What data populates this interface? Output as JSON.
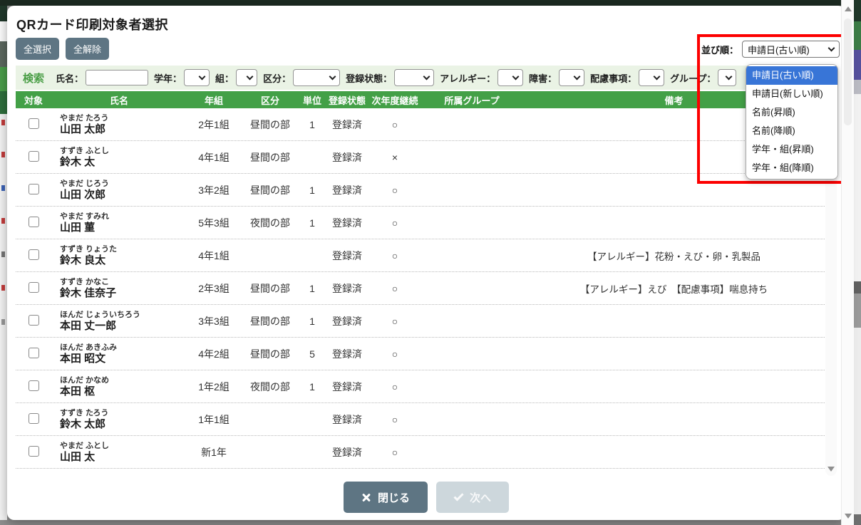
{
  "modal": {
    "title": "QRカード印刷対象者選択",
    "select_all_label": "全選択",
    "deselect_all_label": "全解除",
    "close_label": "閉じる",
    "next_label": "次へ"
  },
  "sort": {
    "label": "並び順：",
    "selected": "申請日(古い順)",
    "selected_index": 0,
    "options": [
      "申請日(古い順)",
      "申請日(新しい順)",
      "名前(昇順)",
      "名前(降順)",
      "学年・組(昇順)",
      "学年・組(降順)"
    ]
  },
  "search": {
    "title": "検索",
    "fields": [
      {
        "label": "氏名：",
        "type": "text",
        "value": "",
        "placeholder": ""
      },
      {
        "label": "学年：",
        "type": "select",
        "value": ""
      },
      {
        "label": "組：",
        "type": "select",
        "value": ""
      },
      {
        "label": "区分：",
        "type": "select",
        "value": ""
      },
      {
        "label": "登録状態：",
        "type": "select",
        "value": ""
      },
      {
        "label": "アレルギー：",
        "type": "select",
        "value": ""
      },
      {
        "label": "障害：",
        "type": "select",
        "value": ""
      },
      {
        "label": "配慮事項：",
        "type": "select",
        "value": ""
      },
      {
        "label": "グループ：",
        "type": "select",
        "value": ""
      }
    ]
  },
  "table": {
    "headers": [
      "対象",
      "氏名",
      "年組",
      "区分",
      "単位",
      "登録状態",
      "次年度継続",
      "所属グループ",
      "備考"
    ],
    "rows": [
      {
        "kana": "やまだ たろう",
        "name": "山田 太郎",
        "grade": "2年1組",
        "division": "昼間の部",
        "unit": "1",
        "status": "登録済",
        "next_year": "○",
        "group": "",
        "note": ""
      },
      {
        "kana": "すずき ふとし",
        "name": "鈴木 太",
        "grade": "4年1組",
        "division": "昼間の部",
        "unit": "",
        "status": "登録済",
        "next_year": "×",
        "group": "",
        "note": ""
      },
      {
        "kana": "やまだ じろう",
        "name": "山田 次郎",
        "grade": "3年2組",
        "division": "昼間の部",
        "unit": "1",
        "status": "登録済",
        "next_year": "○",
        "group": "",
        "note": ""
      },
      {
        "kana": "やまだ すみれ",
        "name": "山田 菫",
        "grade": "5年3組",
        "division": "夜間の部",
        "unit": "1",
        "status": "登録済",
        "next_year": "○",
        "group": "",
        "note": ""
      },
      {
        "kana": "すずき りょうた",
        "name": "鈴木 良太",
        "grade": "4年1組",
        "division": "",
        "unit": "",
        "status": "登録済",
        "next_year": "○",
        "group": "",
        "note": "【アレルギー】花粉・えび・卵・乳製品"
      },
      {
        "kana": "すずき かなこ",
        "name": "鈴木 佳奈子",
        "grade": "2年3組",
        "division": "昼間の部",
        "unit": "1",
        "status": "登録済",
        "next_year": "○",
        "group": "",
        "note": "【アレルギー】えび　【配慮事項】喘息持ち"
      },
      {
        "kana": "ほんだ じょういちろう",
        "name": "本田 丈一郎",
        "grade": "3年3組",
        "division": "昼間の部",
        "unit": "1",
        "status": "登録済",
        "next_year": "○",
        "group": "",
        "note": ""
      },
      {
        "kana": "ほんだ あきふみ",
        "name": "本田 昭文",
        "grade": "4年2組",
        "division": "昼間の部",
        "unit": "5",
        "status": "登録済",
        "next_year": "○",
        "group": "",
        "note": ""
      },
      {
        "kana": "ほんだ かなめ",
        "name": "本田 枢",
        "grade": "1年2組",
        "division": "夜間の部",
        "unit": "1",
        "status": "登録済",
        "next_year": "○",
        "group": "",
        "note": ""
      },
      {
        "kana": "すずき たろう",
        "name": "鈴木 太郎",
        "grade": "1年1組",
        "division": "",
        "unit": "",
        "status": "登録済",
        "next_year": "○",
        "group": "",
        "note": ""
      },
      {
        "kana": "やまだ ふとし",
        "name": "山田 太",
        "grade": "新1年",
        "division": "",
        "unit": "",
        "status": "登録済",
        "next_year": "○",
        "group": "",
        "note": ""
      }
    ]
  },
  "colors": {
    "header_green": "#43a047",
    "search_bar_bg": "#eaf3e5",
    "search_label_green": "#4a9e46",
    "button_slate": "#5e7583",
    "next_disabled": "#cdd7dc",
    "select_highlight_blue": "#3875d7",
    "annotation_red": "#fd0000"
  }
}
